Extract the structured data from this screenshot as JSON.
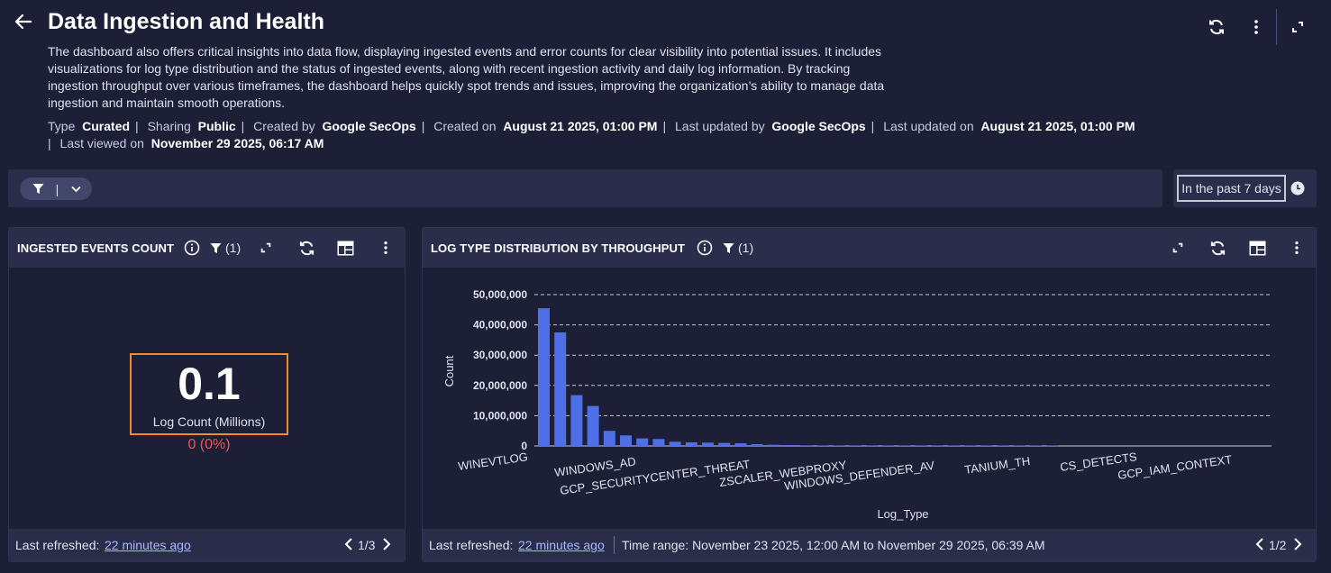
{
  "header": {
    "title": "Data Ingestion and Health",
    "description": "The dashboard also offers critical insights into data flow, displaying ingested events and error counts for clear visibility into potential issues. It includes visualizations for log type distribution and the status of ingested events, along with recent ingestion activity and daily log information. By tracking ingestion throughput over various timeframes, the dashboard helps quickly spot trends and issues, improving the organization’s ability to manage data ingestion and maintain smooth operations.",
    "meta": {
      "type_label": "Type",
      "type_value": "Curated",
      "sharing_label": "Sharing",
      "sharing_value": "Public",
      "created_by_label": "Created by",
      "created_by_value": "Google SecOps",
      "created_on_label": "Created on",
      "created_on_value": "August 21 2025, 01:00 PM",
      "updated_by_label": "Last updated by",
      "updated_by_value": "Google SecOps",
      "updated_on_label": "Last updated on",
      "updated_on_value": "August 21 2025, 01:00 PM",
      "viewed_label": "Last viewed on",
      "viewed_value": "November 29 2025, 06:17 AM"
    }
  },
  "filter_bar": {
    "separator": "|"
  },
  "time_range": {
    "label": "In the past 7 days"
  },
  "card_events": {
    "title": "INGESTED EVENTS COUNT",
    "filter_count": "(1)",
    "metric_value": "0.1",
    "metric_label": "Log Count (Millions)",
    "metric_delta": "0 (0%)",
    "footer": {
      "refreshed_label": "Last refreshed:",
      "refreshed_value": "22 minutes ago",
      "page": "1/3"
    }
  },
  "card_logtype": {
    "title": "LOG TYPE DISTRIBUTION BY THROUGHPUT",
    "filter_count": "(1)",
    "footer": {
      "refreshed_label": "Last refreshed:",
      "refreshed_value": "22 minutes ago",
      "time_range": "Time range: November 23 2025, 12:00 AM to November 29 2025, 06:39 AM",
      "page": "1/2"
    }
  },
  "colors": {
    "bar": "#4f6fe8",
    "accent_orange": "#f28a2e",
    "delta_red": "#f0565e",
    "link": "#a9b6ff"
  },
  "chart_data": {
    "type": "bar",
    "xlabel": "Log_Type",
    "ylabel": "Count",
    "ylim": [
      0,
      50000000
    ],
    "yticks": [
      0,
      10000000,
      20000000,
      30000000,
      40000000,
      50000000
    ],
    "ytick_labels": [
      "0",
      "10,000,000",
      "20,000,000",
      "30,000,000",
      "40,000,000",
      "50,000,000"
    ],
    "grid": true,
    "visible_tick_labels": [
      "WINEVTLOG",
      "WINDOWS_AD",
      "GCP_SECURITYCENTER_THREAT",
      "ZSCALER_WEBPROXY",
      "WINDOWS_DEFENDER_AV",
      "TANIUM_TH",
      "CS_DETECTS",
      "GCP_IAM_CONTEXT"
    ],
    "values": [
      45500000,
      37500000,
      16800000,
      13200000,
      5000000,
      3500000,
      2500000,
      2300000,
      1400000,
      1200000,
      1100000,
      1000000,
      900000,
      600000,
      400000,
      300000,
      200000,
      100000,
      50000,
      30000,
      20000,
      15000,
      10000,
      8000,
      6000,
      5000,
      4000,
      3000,
      2500,
      2000,
      1500,
      1000
    ]
  }
}
